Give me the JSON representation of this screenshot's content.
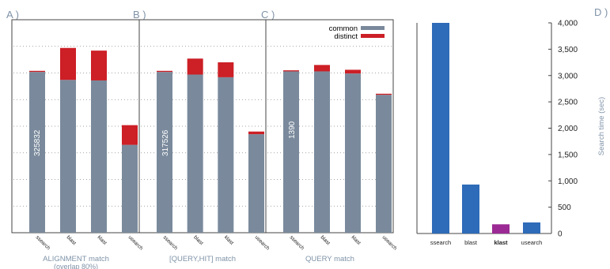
{
  "colors": {
    "common": "#7a8a9c",
    "distinct": "#cc1f26",
    "panel_label": "#7f93a8",
    "search_bar": "#2e6bb8",
    "klast_bar": "#9b2a94",
    "axis": "#444444",
    "grid": "#888888"
  },
  "legend": {
    "common": "common",
    "distinct": "distinct"
  },
  "chart_data": [
    {
      "type": "bar",
      "panel": "A )",
      "stacked": true,
      "title": "ALIGNMENT match",
      "subtitle": "(overlap 80%)",
      "categories": [
        "ssearch",
        "blast",
        "klast",
        "usearch"
      ],
      "series": [
        {
          "name": "common",
          "values": [
            3.02,
            2.87,
            2.86,
            1.65
          ]
        },
        {
          "name": "distinct",
          "values": [
            0.02,
            0.6,
            0.56,
            0.37
          ]
        }
      ],
      "annotation": "325832",
      "ylim": [
        0,
        4.0
      ],
      "grid": true
    },
    {
      "type": "bar",
      "panel": "B )",
      "stacked": true,
      "title": "[QUERY,HIT] match",
      "categories": [
        "ssearch",
        "blast",
        "klast",
        "usearch"
      ],
      "series": [
        {
          "name": "common",
          "values": [
            3.02,
            2.97,
            2.92,
            1.85
          ]
        },
        {
          "name": "distinct",
          "values": [
            0.02,
            0.3,
            0.28,
            0.05
          ]
        }
      ],
      "annotation": "317526",
      "ylim": [
        0,
        4.0
      ],
      "grid": true
    },
    {
      "type": "bar",
      "panel": "C )",
      "stacked": true,
      "title": "QUERY match",
      "categories": [
        "ssearch",
        "blast",
        "klast",
        "usearch"
      ],
      "series": [
        {
          "name": "common",
          "values": [
            3.03,
            3.03,
            2.99,
            2.59
          ]
        },
        {
          "name": "distinct",
          "values": [
            0.02,
            0.12,
            0.07,
            0.02
          ]
        }
      ],
      "annotation": "1390",
      "ylim": [
        0,
        4.0
      ],
      "grid": true
    },
    {
      "type": "bar",
      "panel": "D )",
      "categories": [
        "ssearch",
        "blast",
        "klast",
        "usearch"
      ],
      "values": [
        4000,
        930,
        175,
        210
      ],
      "highlight": "klast",
      "ylabel": "Search time (sec)",
      "ylim": [
        0,
        4000
      ],
      "yticks": [
        "0",
        "500",
        "1,000",
        "1,500",
        "2,000",
        "2,500",
        "3,000",
        "3,500",
        "4,000"
      ],
      "grid": false
    }
  ]
}
